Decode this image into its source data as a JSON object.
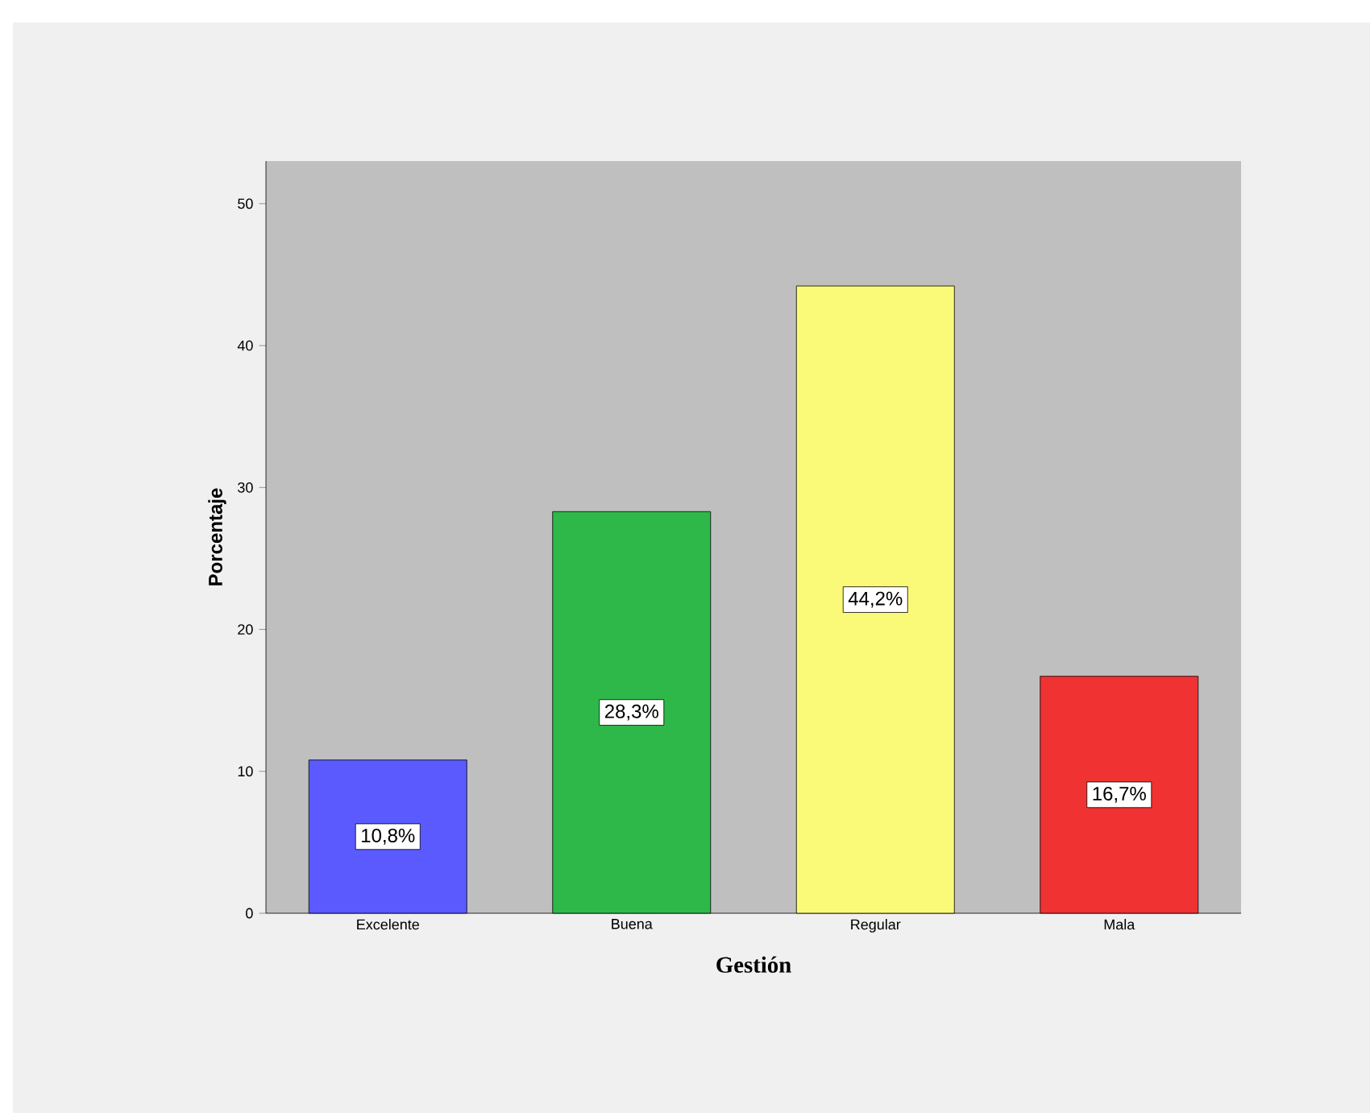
{
  "chart_data": {
    "type": "bar",
    "xlabel": "Gestión",
    "ylabel": "Porcentaje",
    "categories": [
      "Excelente",
      "Buena",
      "Regular",
      "Mala"
    ],
    "values": [
      10.8,
      28.3,
      44.2,
      16.7
    ],
    "value_labels": [
      "10,8%",
      "28,3%",
      "44,2%",
      "16,7%"
    ],
    "colors": [
      "#5a5aff",
      "#2eb84a",
      "#fafa78",
      "#f03232"
    ],
    "ylim": [
      0,
      53
    ],
    "yticks": [
      0,
      10,
      20,
      30,
      40,
      50
    ]
  }
}
